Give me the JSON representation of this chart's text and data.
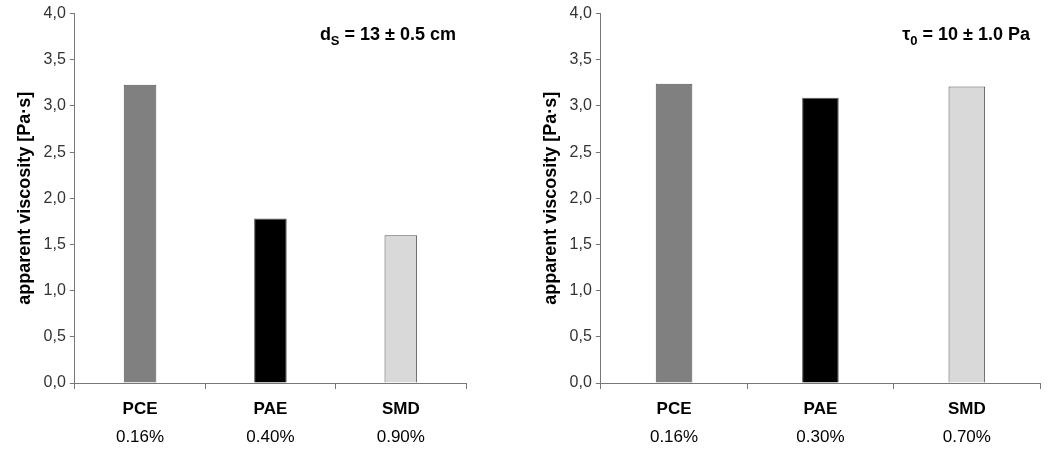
{
  "chart_data": [
    {
      "type": "bar",
      "ylabel": "apparent viscosity [Pa·s]",
      "categories": [
        "PCE\n0.16%",
        "PAE\n0.40%",
        "SMD\n0.90%"
      ],
      "values": [
        3.23,
        1.78,
        1.6
      ],
      "colors": [
        "#808080",
        "#000000",
        "#d9d9d9"
      ],
      "ylim": [
        0,
        4
      ],
      "yticks": [
        {
          "value": 0,
          "label": "0,0"
        },
        {
          "value": 0.5,
          "label": "0,5"
        },
        {
          "value": 1,
          "label": "1,0"
        },
        {
          "value": 1.5,
          "label": "1,5"
        },
        {
          "value": 2,
          "label": "2,0"
        },
        {
          "value": 2.5,
          "label": "2,5"
        },
        {
          "value": 3,
          "label": "3,0"
        },
        {
          "value": 3.5,
          "label": "3,5"
        },
        {
          "value": 4,
          "label": "4,0"
        }
      ],
      "grid": false,
      "legend": false,
      "annotations": [
        "d$_{S}$ = 13 ± 0.5 cm"
      ]
    },
    {
      "type": "bar",
      "ylabel": "apparent viscosity [Pa·s]",
      "categories": [
        "PCE\n0.16%",
        "PAE\n0.30%",
        "SMD\n0.70%"
      ],
      "values": [
        3.24,
        3.09,
        3.21
      ],
      "colors": [
        "#808080",
        "#000000",
        "#d9d9d9"
      ],
      "ylim": [
        0,
        4
      ],
      "yticks": [
        {
          "value": 0,
          "label": "0,0"
        },
        {
          "value": 0.5,
          "label": "0,5"
        },
        {
          "value": 1,
          "label": "1,0"
        },
        {
          "value": 1.5,
          "label": "1,5"
        },
        {
          "value": 2,
          "label": "2,0"
        },
        {
          "value": 2.5,
          "label": "2,5"
        },
        {
          "value": 3,
          "label": "3,0"
        },
        {
          "value": 3.5,
          "label": "3,5"
        },
        {
          "value": 4,
          "label": "4,0"
        }
      ],
      "grid": false,
      "legend": false,
      "annotations": [
        "τ$_{0}$ = 10 ± 1.0 Pa"
      ]
    }
  ]
}
